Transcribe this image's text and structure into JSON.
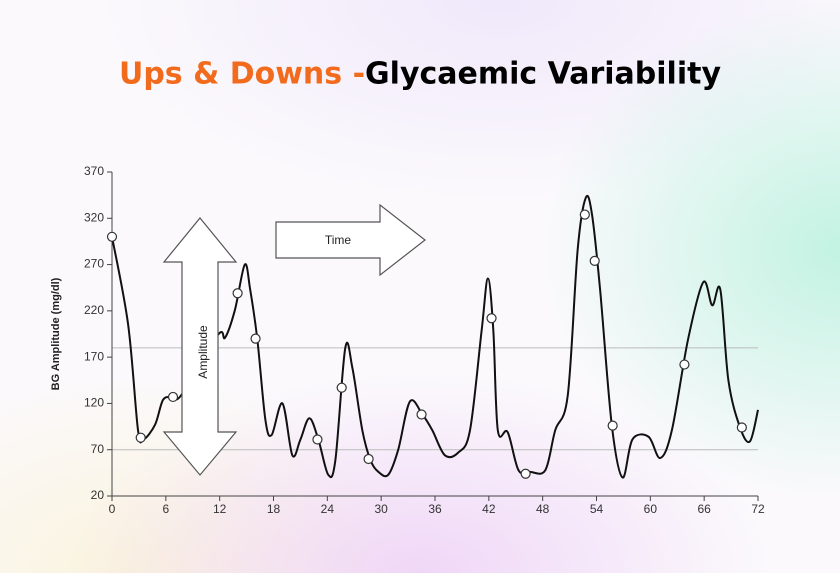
{
  "chart_data": {
    "type": "line",
    "title_prefix": "Ups & Downs - ",
    "title": "Glycaemic Variability",
    "y_label": "BG Amplitude (mg/dl)",
    "annotations": [
      "Amplitude",
      "Time"
    ],
    "color": "#111111",
    "title_prefix_color": "#f26b1d",
    "x": [
      0,
      1.8,
      2.9,
      3.5,
      4.8,
      5.7,
      6.8,
      7.8,
      11.8,
      12.6,
      13.7,
      14.8,
      15.4,
      16.2,
      17.1,
      17.8,
      19,
      20.1,
      21,
      22,
      23,
      24.1,
      24.9,
      26,
      26.8,
      27.9,
      28.8,
      29.7,
      30.8,
      31.9,
      33.2,
      34.6,
      35.7,
      37.1,
      38.6,
      39.9,
      41.2,
      41.9,
      42.5,
      43,
      44.1,
      45.3,
      46.6,
      48.3,
      49.4,
      50.8,
      51.9,
      52.8,
      53.5,
      54.4,
      55.7,
      56.9,
      58,
      59.8,
      61.1,
      62.4,
      64.2,
      65.9,
      66.9,
      67.8,
      68.7,
      70,
      71.1,
      72
    ],
    "values": [
      300,
      205,
      91,
      81,
      97,
      124,
      127,
      130,
      194,
      191,
      221,
      270,
      243,
      189,
      102,
      86,
      120,
      64,
      81,
      104,
      81,
      43,
      59,
      180,
      158,
      91,
      59,
      46,
      43,
      70,
      122,
      108,
      91,
      64,
      67,
      91,
      199,
      255,
      199,
      91,
      89,
      48,
      46,
      48,
      91,
      129,
      286,
      342,
      324,
      243,
      97,
      40,
      81,
      84,
      61,
      91,
      189,
      251,
      226,
      243,
      145,
      94,
      79,
      113
    ],
    "markers": {
      "x": [
        0,
        3.2,
        6.8,
        14,
        16,
        22.9,
        25.6,
        28.6,
        34.5,
        42.3,
        46.1,
        52.7,
        53.8,
        55.8,
        63.8,
        70.2
      ],
      "values": [
        300,
        83,
        127,
        239,
        190,
        81,
        137,
        60,
        108,
        212,
        44,
        324,
        274,
        96,
        162,
        94
      ]
    },
    "reference_lines": [
      70,
      180
    ],
    "xlim": [
      0,
      72
    ],
    "xticks": [
      0,
      6,
      12,
      18,
      24,
      30,
      36,
      42,
      48,
      54,
      60,
      66,
      72
    ],
    "ylim": [
      20,
      370
    ],
    "yticks": [
      20,
      70,
      120,
      170,
      220,
      270,
      320,
      370
    ]
  }
}
